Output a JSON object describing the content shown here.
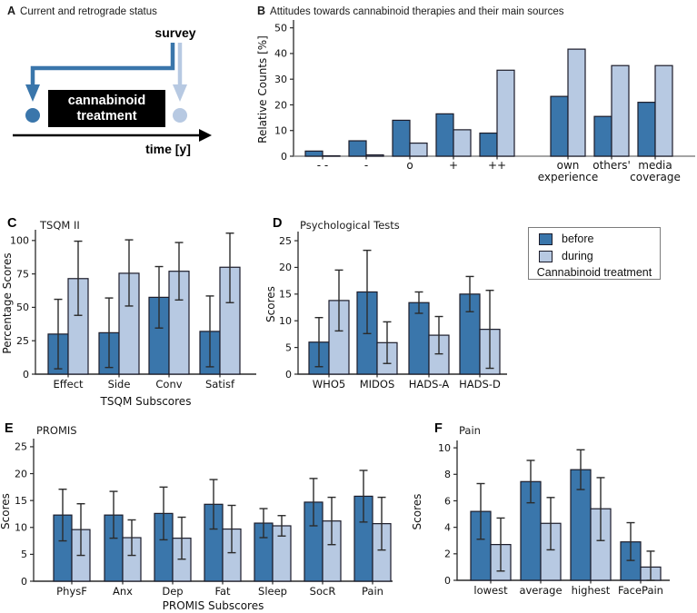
{
  "colors": {
    "before": "#3a76ab",
    "during": "#b7c9e2",
    "bar_edge": "#1c1c2a",
    "error_bar": "#2b2b2b",
    "axis": "#2a2a2a",
    "axis_baseline_b": "#858585"
  },
  "panel_a": {
    "letter": "A",
    "title": "Current and retrograde status",
    "survey_label": "survey",
    "treatment_box_lines": [
      "cannabinoid",
      "treatment"
    ],
    "time_axis_label": "time [y]"
  },
  "legend": {
    "before_label": "before",
    "during_label": "during",
    "caption": "Cannabinoid treatment"
  },
  "chart_data": [
    {
      "id": "B",
      "letter": "B",
      "type": "bar",
      "title": "Attitudes towards cannabinoid therapies and their main sources",
      "ylabel": "Relative Counts [%]",
      "xlabel": "",
      "ylim": [
        0,
        52
      ],
      "yticks": [
        0,
        10,
        20,
        30,
        40,
        50
      ],
      "grid": false,
      "legend_position": "none",
      "categories": [
        "- -",
        "-",
        "o",
        "+",
        "++",
        "own\nexperience",
        "others'",
        "media\ncoverage"
      ],
      "series": [
        {
          "name": "before",
          "values": [
            2,
            6,
            14,
            16.5,
            9,
            23.3,
            15.5,
            21
          ]
        },
        {
          "name": "during",
          "values": [
            0.15,
            0.5,
            5.1,
            10.3,
            33.5,
            41.7,
            35.3,
            35.3
          ]
        }
      ]
    },
    {
      "id": "C",
      "letter": "C",
      "type": "bar",
      "title": "TSQM II",
      "ylabel": "Percentage Scores",
      "xlabel": "TSQM Subscores",
      "ylim": [
        0,
        106
      ],
      "yticks": [
        0,
        25,
        50,
        75,
        100
      ],
      "grid": false,
      "legend_position": "none",
      "categories": [
        "Effect",
        "Side",
        "Conv",
        "Satisf"
      ],
      "series": [
        {
          "name": "before",
          "values": [
            30,
            31,
            57.5,
            32
          ],
          "errors_low": [
            4,
            5,
            34.5,
            5.5
          ],
          "errors_high": [
            56,
            57,
            80.5,
            58.5
          ]
        },
        {
          "name": "during",
          "values": [
            71.5,
            75.5,
            77,
            80
          ],
          "errors_low": [
            44,
            51,
            55.5,
            53.5
          ],
          "errors_high": [
            99.5,
            100.5,
            98.5,
            105.5
          ]
        }
      ]
    },
    {
      "id": "D",
      "letter": "D",
      "type": "bar",
      "title": "Psychological Tests",
      "ylabel": "Scores",
      "xlabel": "",
      "ylim": [
        0,
        26.2
      ],
      "yticks": [
        0,
        5,
        10,
        15,
        20,
        25
      ],
      "grid": false,
      "legend_position": "outside-right",
      "categories": [
        "WHO5",
        "MIDOS",
        "HADS-A",
        "HADS-D"
      ],
      "series": [
        {
          "name": "before",
          "values": [
            6,
            15.4,
            13.4,
            15
          ],
          "errors_low": [
            1.4,
            7.6,
            11.4,
            11.7
          ],
          "errors_high": [
            10.6,
            23.2,
            15.4,
            18.3
          ]
        },
        {
          "name": "during",
          "values": [
            13.8,
            5.9,
            7.3,
            8.4
          ],
          "errors_low": [
            8.1,
            2,
            3.8,
            1.1
          ],
          "errors_high": [
            19.5,
            9.8,
            10.8,
            15.7
          ]
        }
      ]
    },
    {
      "id": "E",
      "letter": "E",
      "type": "bar",
      "title": "PROMIS",
      "ylabel": "Scores",
      "xlabel": "PROMIS Subscores",
      "ylim": [
        0,
        26
      ],
      "yticks": [
        0,
        5,
        10,
        15,
        20,
        25
      ],
      "grid": false,
      "legend_position": "none",
      "categories": [
        "PhysF",
        "Anx",
        "Dep",
        "Fat",
        "Sleep",
        "SocR",
        "Pain"
      ],
      "series": [
        {
          "name": "before",
          "values": [
            12.3,
            12.3,
            12.6,
            14.3,
            10.8,
            14.7,
            15.8
          ],
          "errors_low": [
            7.5,
            8,
            7.7,
            9.7,
            8.1,
            10.3,
            11
          ],
          "errors_high": [
            17.1,
            16.7,
            17.5,
            18.9,
            13.5,
            19.1,
            20.6
          ]
        },
        {
          "name": "during",
          "values": [
            9.6,
            8.1,
            8,
            9.7,
            10.3,
            11.2,
            10.7
          ],
          "errors_low": [
            4.8,
            4.8,
            4.1,
            5.3,
            8.4,
            6.8,
            5.8
          ],
          "errors_high": [
            14.4,
            11.4,
            11.9,
            14.1,
            12.2,
            15.6,
            15.6
          ]
        }
      ]
    },
    {
      "id": "F",
      "letter": "F",
      "type": "bar",
      "title": "Pain",
      "ylabel": "Scores",
      "xlabel": "",
      "ylim": [
        0,
        10.35
      ],
      "yticks": [
        0,
        2,
        4,
        6,
        8,
        10
      ],
      "grid": false,
      "legend_position": "none",
      "categories": [
        "lowest",
        "average",
        "highest",
        "FacePain"
      ],
      "series": [
        {
          "name": "before",
          "values": [
            5.2,
            7.45,
            8.35,
            2.9
          ],
          "errors_low": [
            3.1,
            5.85,
            6.85,
            1.5
          ],
          "errors_high": [
            7.3,
            9.05,
            9.85,
            4.35
          ]
        },
        {
          "name": "during",
          "values": [
            2.7,
            4.3,
            5.4,
            1
          ],
          "errors_low": [
            0.7,
            2.3,
            3,
            0
          ],
          "errors_high": [
            4.7,
            6.25,
            7.75,
            2.2
          ]
        }
      ]
    }
  ]
}
